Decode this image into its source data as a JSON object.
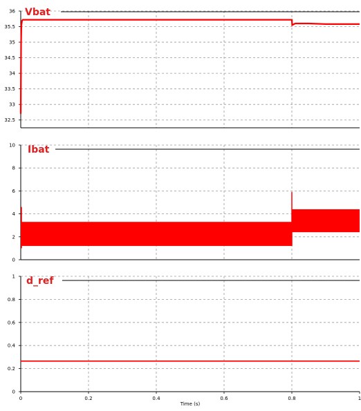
{
  "colors": {
    "trace": "#ff0000",
    "grid": "#9a9a9a",
    "axis": "#000000",
    "title": "#e02020"
  },
  "xaxis": {
    "label": "Time (s)",
    "ticks": [
      "0",
      "0.2",
      "0.4",
      "0.6",
      "0.8",
      "1"
    ]
  },
  "chart_data": [
    {
      "type": "line",
      "title": "Vbat",
      "xlim": [
        0,
        1
      ],
      "ylim": [
        32.25,
        36
      ],
      "yticks": [
        "32.5",
        "33",
        "33.5",
        "34",
        "34.5",
        "35",
        "35.5",
        "36"
      ],
      "grid": true,
      "series": [
        {
          "x": [
            0,
            0.001,
            0.002,
            0.004,
            0.006,
            0.01,
            0.2,
            0.4,
            0.6,
            0.799,
            0.8,
            0.801,
            0.81,
            0.85,
            0.9,
            1.0
          ],
          "y": [
            32.7,
            35.0,
            35.55,
            35.7,
            35.72,
            35.72,
            35.72,
            35.72,
            35.72,
            35.72,
            35.72,
            35.55,
            35.6,
            35.6,
            35.58,
            35.58
          ],
          "band": 0.05
        }
      ]
    },
    {
      "type": "line",
      "title": "Ibat",
      "xlim": [
        0,
        1
      ],
      "ylim": [
        0,
        10
      ],
      "yticks": [
        "0",
        "2",
        "4",
        "6",
        "8",
        "10"
      ],
      "grid": true,
      "series": [
        {
          "segments": [
            {
              "x0": 0.0,
              "x1": 0.8,
              "min": 1.2,
              "max": 3.3
            },
            {
              "x0": 0.8,
              "x1": 1.0,
              "min": 2.4,
              "max": 4.4
            }
          ],
          "spikes": [
            {
              "x": 0.002,
              "min": 1.0,
              "max": 4.6
            },
            {
              "x": 0.8,
              "min": 1.2,
              "max": 5.9
            }
          ]
        }
      ]
    },
    {
      "type": "line",
      "title": "d_ref",
      "xlim": [
        0,
        1
      ],
      "ylim": [
        0,
        1
      ],
      "yticks": [
        "0",
        "0.2",
        "0.4",
        "0.6",
        "0.8",
        "1"
      ],
      "grid": true,
      "series": [
        {
          "x": [
            0,
            0.2,
            0.4,
            0.6,
            0.8,
            1.0
          ],
          "y": [
            0.265,
            0.265,
            0.265,
            0.265,
            0.265,
            0.265
          ],
          "band": 0.01
        }
      ]
    }
  ]
}
